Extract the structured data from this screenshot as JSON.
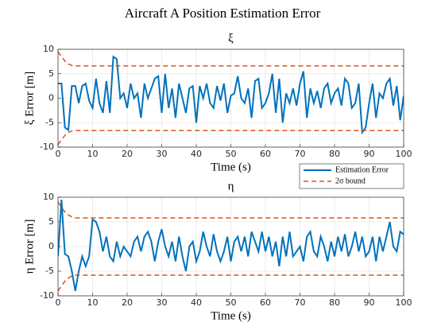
{
  "title": "Aircraft A Position Estimation Error",
  "chart_data": [
    {
      "type": "line",
      "title": "ξ",
      "xlabel": "Time (s)",
      "ylabel": "ξ Error [m]",
      "xlim": [
        0,
        100
      ],
      "ylim": [
        -10,
        10
      ],
      "xticks": [
        0,
        10,
        20,
        30,
        40,
        50,
        60,
        70,
        80,
        90,
        100
      ],
      "yticks": [
        -10,
        -5,
        0,
        5,
        10
      ],
      "grid": true,
      "legend": "southeast",
      "x": [
        0,
        1,
        2,
        3,
        4,
        5,
        6,
        7,
        8,
        9,
        10,
        11,
        12,
        13,
        14,
        15,
        16,
        17,
        18,
        19,
        20,
        21,
        22,
        23,
        24,
        25,
        26,
        27,
        28,
        29,
        30,
        31,
        32,
        33,
        34,
        35,
        36,
        37,
        38,
        39,
        40,
        41,
        42,
        43,
        44,
        45,
        46,
        47,
        48,
        49,
        50,
        51,
        52,
        53,
        54,
        55,
        56,
        57,
        58,
        59,
        60,
        61,
        62,
        63,
        64,
        65,
        66,
        67,
        68,
        69,
        70,
        71,
        72,
        73,
        74,
        75,
        76,
        77,
        78,
        79,
        80,
        81,
        82,
        83,
        84,
        85,
        86,
        87,
        88,
        89,
        90,
        91,
        92,
        93,
        94,
        95,
        96,
        97,
        98,
        99,
        100
      ],
      "series": [
        {
          "name": "Estimation Error",
          "color": "#0072bd",
          "style": "solid",
          "values": [
            3,
            3,
            -6,
            -6.5,
            2.5,
            2.5,
            -1,
            2.5,
            3,
            -0.5,
            -2,
            4,
            -1,
            -3,
            3.5,
            -3,
            8.5,
            8,
            0,
            1,
            -2,
            3,
            0,
            1,
            -4,
            3,
            0,
            2,
            4,
            4.5,
            -3,
            5,
            -2,
            2,
            -4,
            3,
            0,
            -3,
            2,
            2.5,
            -5,
            2.5,
            0,
            3,
            -1,
            -2,
            2.5,
            -0.5,
            3,
            -3,
            0.5,
            1,
            4.5,
            0,
            -1,
            2,
            -4,
            3.5,
            4,
            -2,
            -1,
            1,
            5,
            -3,
            4,
            -5,
            1,
            -1,
            2,
            -1.5,
            3,
            5.5,
            -4,
            2,
            -1,
            1.5,
            -2,
            2,
            3,
            -1,
            1,
            2,
            -1.5,
            4,
            3,
            -2,
            -1,
            3,
            -7,
            -6,
            -1,
            3,
            -4,
            1,
            0,
            3,
            4,
            -1.5,
            2.5,
            -4.5,
            0.5
          ]
        },
        {
          "name": "2σ bound",
          "color": "#d95319",
          "style": "dashed",
          "x": [
            0,
            1,
            2,
            3,
            4,
            5,
            100
          ],
          "values": [
            9.5,
            8.5,
            7.6,
            7.0,
            6.7,
            6.6,
            6.6
          ],
          "lower": [
            -9.5,
            -8.5,
            -7.6,
            -7.0,
            -6.7,
            -6.6,
            -6.6
          ]
        }
      ]
    },
    {
      "type": "line",
      "title": "η",
      "xlabel": "Time (s)",
      "ylabel": "η Error [m]",
      "xlim": [
        0,
        100
      ],
      "ylim": [
        -10,
        10
      ],
      "xticks": [
        0,
        10,
        20,
        30,
        40,
        50,
        60,
        70,
        80,
        90,
        100
      ],
      "yticks": [
        -10,
        -5,
        0,
        5,
        10
      ],
      "grid": true,
      "x": [
        0,
        1,
        2,
        3,
        4,
        5,
        6,
        7,
        8,
        9,
        10,
        11,
        12,
        13,
        14,
        15,
        16,
        17,
        18,
        19,
        20,
        21,
        22,
        23,
        24,
        25,
        26,
        27,
        28,
        29,
        30,
        31,
        32,
        33,
        34,
        35,
        36,
        37,
        38,
        39,
        40,
        41,
        42,
        43,
        44,
        45,
        46,
        47,
        48,
        49,
        50,
        51,
        52,
        53,
        54,
        55,
        56,
        57,
        58,
        59,
        60,
        61,
        62,
        63,
        64,
        65,
        66,
        67,
        68,
        69,
        70,
        71,
        72,
        73,
        74,
        75,
        76,
        77,
        78,
        79,
        80,
        81,
        82,
        83,
        84,
        85,
        86,
        87,
        88,
        89,
        90,
        91,
        92,
        93,
        94,
        95,
        96,
        97,
        98,
        99,
        100
      ],
      "series": [
        {
          "color": "#0072bd",
          "style": "solid",
          "values": [
            -2,
            9.5,
            -1.5,
            -2,
            -5,
            -9,
            -5,
            -2,
            -4,
            -2,
            5.5,
            5,
            3,
            -1,
            2,
            -2,
            -3,
            1,
            -2,
            0,
            -1,
            -2,
            1,
            2,
            -1,
            2,
            3,
            1,
            -3,
            1,
            3.5,
            0,
            -2,
            1,
            -3,
            2,
            -2,
            -5,
            0,
            1,
            -3,
            -1,
            3,
            0,
            -2,
            2.5,
            -1,
            -3,
            -1,
            2,
            -3,
            1,
            2,
            -1,
            2,
            -2,
            3,
            1,
            -1,
            3,
            -1,
            2,
            -2,
            1,
            -4,
            2,
            -2,
            3,
            -2,
            -1,
            0,
            -3,
            2,
            3,
            -1,
            -2,
            2,
            0,
            -3,
            1,
            -2,
            2,
            -1,
            2.5,
            -2,
            0,
            3,
            -1,
            2,
            -2,
            -1,
            2,
            -3,
            2,
            -1,
            2,
            5,
            0,
            -1,
            3,
            2.5
          ]
        },
        {
          "color": "#d95319",
          "style": "dashed",
          "x": [
            0,
            1,
            2,
            3,
            4,
            5,
            100
          ],
          "values": [
            9.0,
            8.0,
            7.0,
            6.4,
            6.0,
            5.8,
            5.8
          ],
          "lower": [
            -9.0,
            -8.0,
            -7.0,
            -6.4,
            -6.0,
            -5.8,
            -5.8
          ]
        }
      ]
    }
  ]
}
